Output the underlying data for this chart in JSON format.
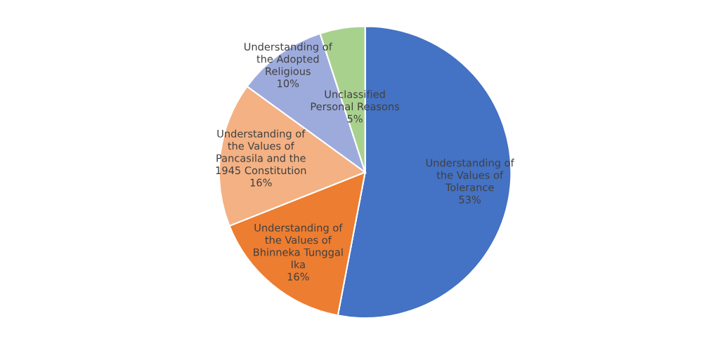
{
  "chart_data": {
    "type": "pie",
    "categories": [
      "Understanding of\nthe Values of\nTolerance",
      "Understanding of\nthe Values of\nBhinneka Tunggal\nIka",
      "Understanding of\nthe Values of\nPancasila and the\n1945 Constitution",
      "Understanding of\nthe Adopted\nReligious",
      "Unclassified\nPersonal Reasons"
    ],
    "values": [
      53,
      16,
      16,
      10,
      5
    ],
    "value_labels": [
      "53%",
      "16%",
      "16%",
      "10%",
      "5%"
    ],
    "colors": [
      "#4472c4",
      "#ed7d31",
      "#f4b183",
      "#9dabdc",
      "#a9d18e"
    ]
  }
}
